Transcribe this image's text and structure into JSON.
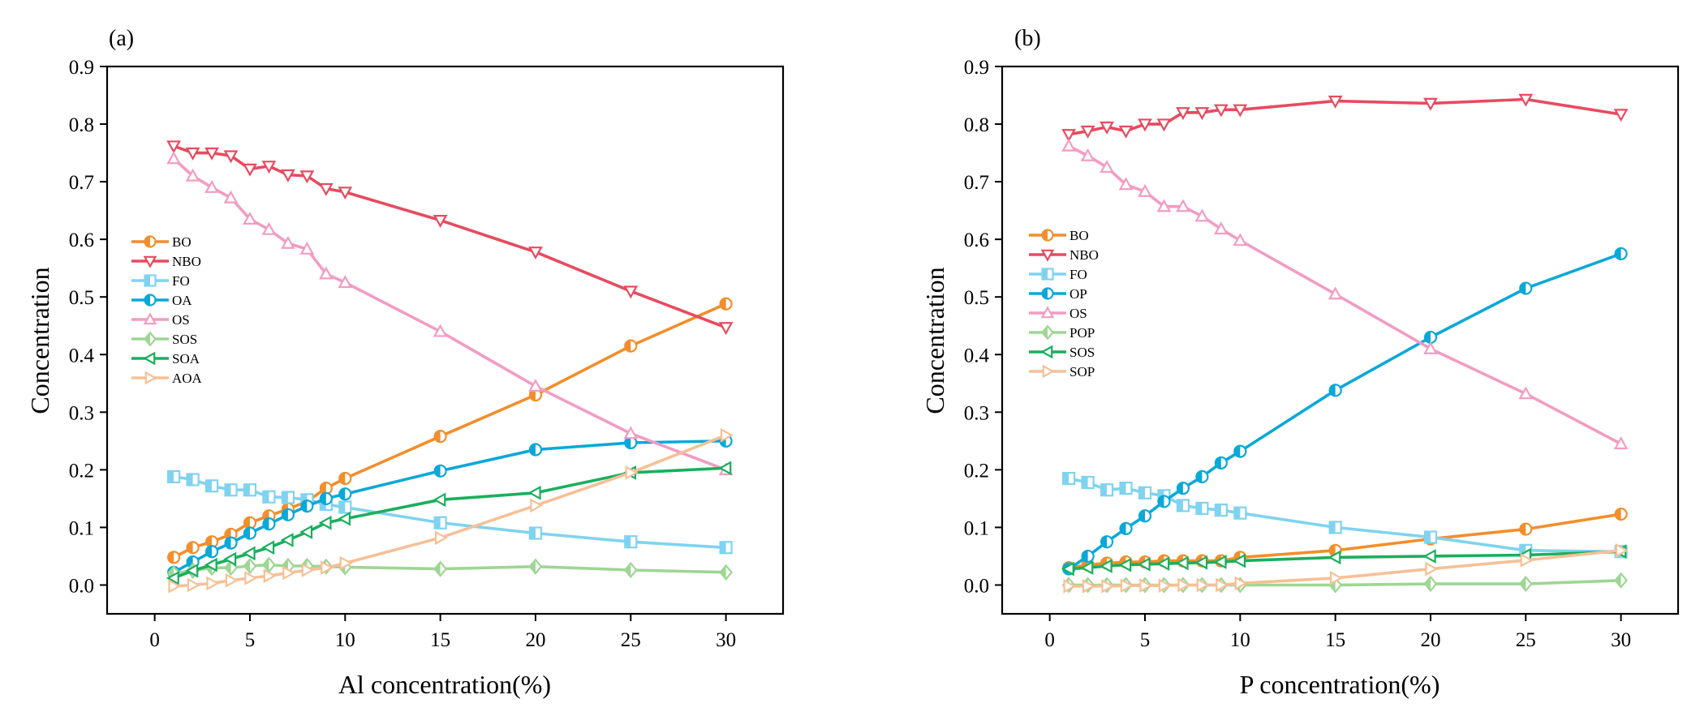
{
  "chart_data": [
    {
      "panel_label": "(a)",
      "type": "line",
      "xlabel": "Al concentration(%)",
      "ylabel": "Concentration",
      "xlim": [
        -2.5,
        33
      ],
      "ylim": [
        -0.05,
        0.9
      ],
      "xticks": [
        0,
        5,
        10,
        15,
        20,
        25,
        30
      ],
      "yticks": [
        0.0,
        0.1,
        0.2,
        0.3,
        0.4,
        0.5,
        0.6,
        0.7,
        0.8,
        0.9
      ],
      "x": [
        1,
        2,
        3,
        4,
        5,
        6,
        7,
        8,
        9,
        10,
        15,
        20,
        25,
        30
      ],
      "legend_position": "center-left",
      "series": [
        {
          "name": "BO",
          "color": "#f28e2b",
          "marker": "circle-half",
          "values": [
            0.048,
            0.065,
            0.075,
            0.088,
            0.108,
            0.12,
            0.132,
            0.145,
            0.168,
            0.185,
            0.258,
            0.33,
            0.415,
            0.488
          ]
        },
        {
          "name": "NBO",
          "color": "#e84a5f",
          "marker": "triangle-down",
          "values": [
            0.762,
            0.75,
            0.75,
            0.745,
            0.722,
            0.727,
            0.712,
            0.71,
            0.688,
            0.682,
            0.633,
            0.578,
            0.51,
            0.447
          ]
        },
        {
          "name": "FO",
          "color": "#7fd3ef",
          "marker": "square-half",
          "values": [
            0.188,
            0.183,
            0.172,
            0.165,
            0.165,
            0.153,
            0.152,
            0.148,
            0.14,
            0.135,
            0.108,
            0.09,
            0.075,
            0.065
          ]
        },
        {
          "name": "OA",
          "color": "#0aa8d8",
          "marker": "circle-half",
          "values": [
            0.022,
            0.04,
            0.058,
            0.073,
            0.09,
            0.106,
            0.122,
            0.137,
            0.15,
            0.158,
            0.198,
            0.235,
            0.247,
            0.25
          ]
        },
        {
          "name": "OS",
          "color": "#f29cc3",
          "marker": "triangle-up",
          "values": [
            0.74,
            0.71,
            0.69,
            0.672,
            0.635,
            0.617,
            0.593,
            0.583,
            0.54,
            0.525,
            0.44,
            0.345,
            0.263,
            0.2
          ]
        },
        {
          "name": "SOS",
          "color": "#9ed694",
          "marker": "diamond-half",
          "values": [
            0.02,
            0.025,
            0.03,
            0.03,
            0.033,
            0.035,
            0.033,
            0.033,
            0.032,
            0.031,
            0.028,
            0.032,
            0.026,
            0.022
          ]
        },
        {
          "name": "SOA",
          "color": "#1aaf5d",
          "marker": "triangle-left",
          "values": [
            0.012,
            0.025,
            0.035,
            0.045,
            0.055,
            0.065,
            0.078,
            0.092,
            0.108,
            0.115,
            0.148,
            0.16,
            0.195,
            0.203
          ]
        },
        {
          "name": "AOA",
          "color": "#f6c096",
          "marker": "triangle-right",
          "values": [
            -0.002,
            0.0,
            0.003,
            0.008,
            0.012,
            0.016,
            0.021,
            0.026,
            0.03,
            0.038,
            0.082,
            0.138,
            0.195,
            0.26
          ]
        }
      ]
    },
    {
      "panel_label": "(b)",
      "type": "line",
      "xlabel": "P concentration(%)",
      "ylabel": "Concentration",
      "xlim": [
        -2.5,
        33
      ],
      "ylim": [
        -0.05,
        0.9
      ],
      "xticks": [
        0,
        5,
        10,
        15,
        20,
        25,
        30
      ],
      "yticks": [
        0.0,
        0.1,
        0.2,
        0.3,
        0.4,
        0.5,
        0.6,
        0.7,
        0.8,
        0.9
      ],
      "x": [
        1,
        2,
        3,
        4,
        5,
        6,
        7,
        8,
        9,
        10,
        15,
        20,
        25,
        30
      ],
      "legend_position": "center-left",
      "series": [
        {
          "name": "BO",
          "color": "#f28e2b",
          "marker": "circle-half",
          "values": [
            0.03,
            0.035,
            0.038,
            0.04,
            0.04,
            0.042,
            0.042,
            0.042,
            0.042,
            0.048,
            0.06,
            0.08,
            0.097,
            0.123
          ]
        },
        {
          "name": "NBO",
          "color": "#e84a5f",
          "marker": "triangle-down",
          "values": [
            0.782,
            0.788,
            0.795,
            0.788,
            0.8,
            0.8,
            0.82,
            0.82,
            0.825,
            0.825,
            0.84,
            0.836,
            0.843,
            0.817
          ]
        },
        {
          "name": "FO",
          "color": "#7fd3ef",
          "marker": "square-half",
          "values": [
            0.185,
            0.178,
            0.165,
            0.168,
            0.16,
            0.155,
            0.138,
            0.133,
            0.13,
            0.125,
            0.1,
            0.083,
            0.06,
            0.058
          ]
        },
        {
          "name": "OP",
          "color": "#0aa8d8",
          "marker": "circle-half",
          "values": [
            0.028,
            0.05,
            0.075,
            0.098,
            0.12,
            0.145,
            0.168,
            0.188,
            0.212,
            0.232,
            0.338,
            0.43,
            0.515,
            0.575
          ]
        },
        {
          "name": "OS",
          "color": "#f29cc3",
          "marker": "triangle-up",
          "values": [
            0.762,
            0.745,
            0.725,
            0.695,
            0.683,
            0.657,
            0.657,
            0.64,
            0.618,
            0.598,
            0.505,
            0.41,
            0.332,
            0.245
          ]
        },
        {
          "name": "POP",
          "color": "#9ed694",
          "marker": "diamond-half",
          "values": [
            0.0,
            0.0,
            0.0,
            0.0,
            0.0,
            0.0,
            0.0,
            0.0,
            0.0,
            0.0,
            0.0,
            0.002,
            0.002,
            0.008
          ]
        },
        {
          "name": "SOS",
          "color": "#1aaf5d",
          "marker": "triangle-left",
          "values": [
            0.028,
            0.03,
            0.033,
            0.035,
            0.036,
            0.037,
            0.038,
            0.039,
            0.04,
            0.042,
            0.048,
            0.05,
            0.052,
            0.058
          ]
        },
        {
          "name": "SOP",
          "color": "#f6c096",
          "marker": "triangle-right",
          "values": [
            -0.002,
            -0.002,
            -0.002,
            -0.001,
            -0.001,
            -0.001,
            0.0,
            0.0,
            0.0,
            0.003,
            0.012,
            0.028,
            0.043,
            0.06
          ]
        }
      ]
    }
  ]
}
